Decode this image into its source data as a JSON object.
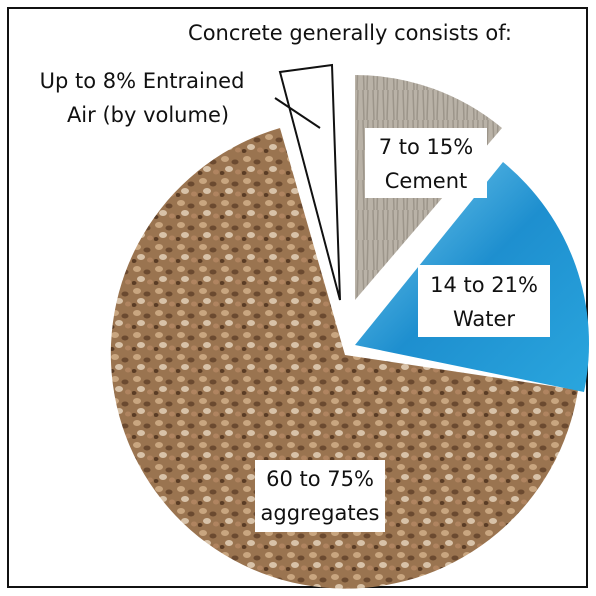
{
  "title": "Concrete generally consists of:",
  "segments": [
    {
      "label_lines": [
        "Up to 8% Entrained",
        "Air (by volume)"
      ]
    },
    {
      "label_lines": [
        "7 to 15%",
        "Cement"
      ]
    },
    {
      "label_lines": [
        "14 to 21%",
        "Water"
      ]
    },
    {
      "label_lines": [
        "60 to 75%",
        "aggregates"
      ]
    }
  ]
}
